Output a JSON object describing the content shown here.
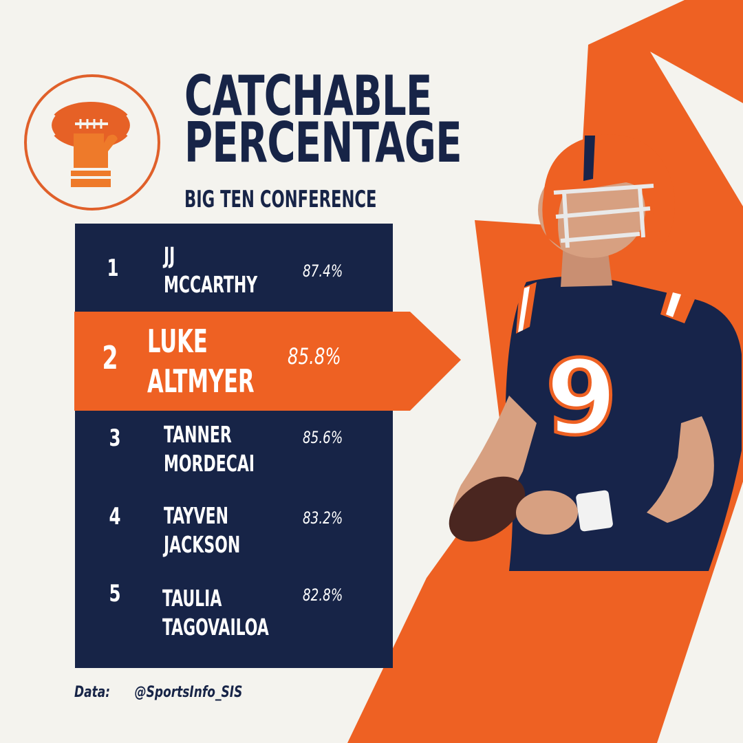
{
  "header": {
    "title_line1": "CATCHABLE",
    "title_line2": "PERCENTAGE",
    "subtitle": "BIG TEN CONFERENCE"
  },
  "logo": {
    "icon": "football-catch-hand-icon"
  },
  "leaderboard": [
    {
      "rank": "1",
      "first": "JJ",
      "last": "MCCARTHY",
      "pct": "87.4%"
    },
    {
      "rank": "2",
      "first": "LUKE",
      "last": "ALTMYER",
      "pct": "85.8%"
    },
    {
      "rank": "3",
      "first": "TANNER",
      "last": "MORDECAI",
      "pct": "85.6%"
    },
    {
      "rank": "4",
      "first": "TAYVEN",
      "last": "JACKSON",
      "pct": "83.2%"
    },
    {
      "rank": "5",
      "first": "TAULIA",
      "last": "TAGOVAILOA",
      "pct": "82.8%"
    }
  ],
  "highlighted_rank": "2",
  "player_photo": {
    "jersey_number": "9",
    "icon": "quarterback-photo"
  },
  "footer": {
    "label": "Data:",
    "source": "@SportsInfo_SIS"
  },
  "colors": {
    "navy": "#172447",
    "orange": "#ee6123",
    "background": "#f4f3ee"
  }
}
